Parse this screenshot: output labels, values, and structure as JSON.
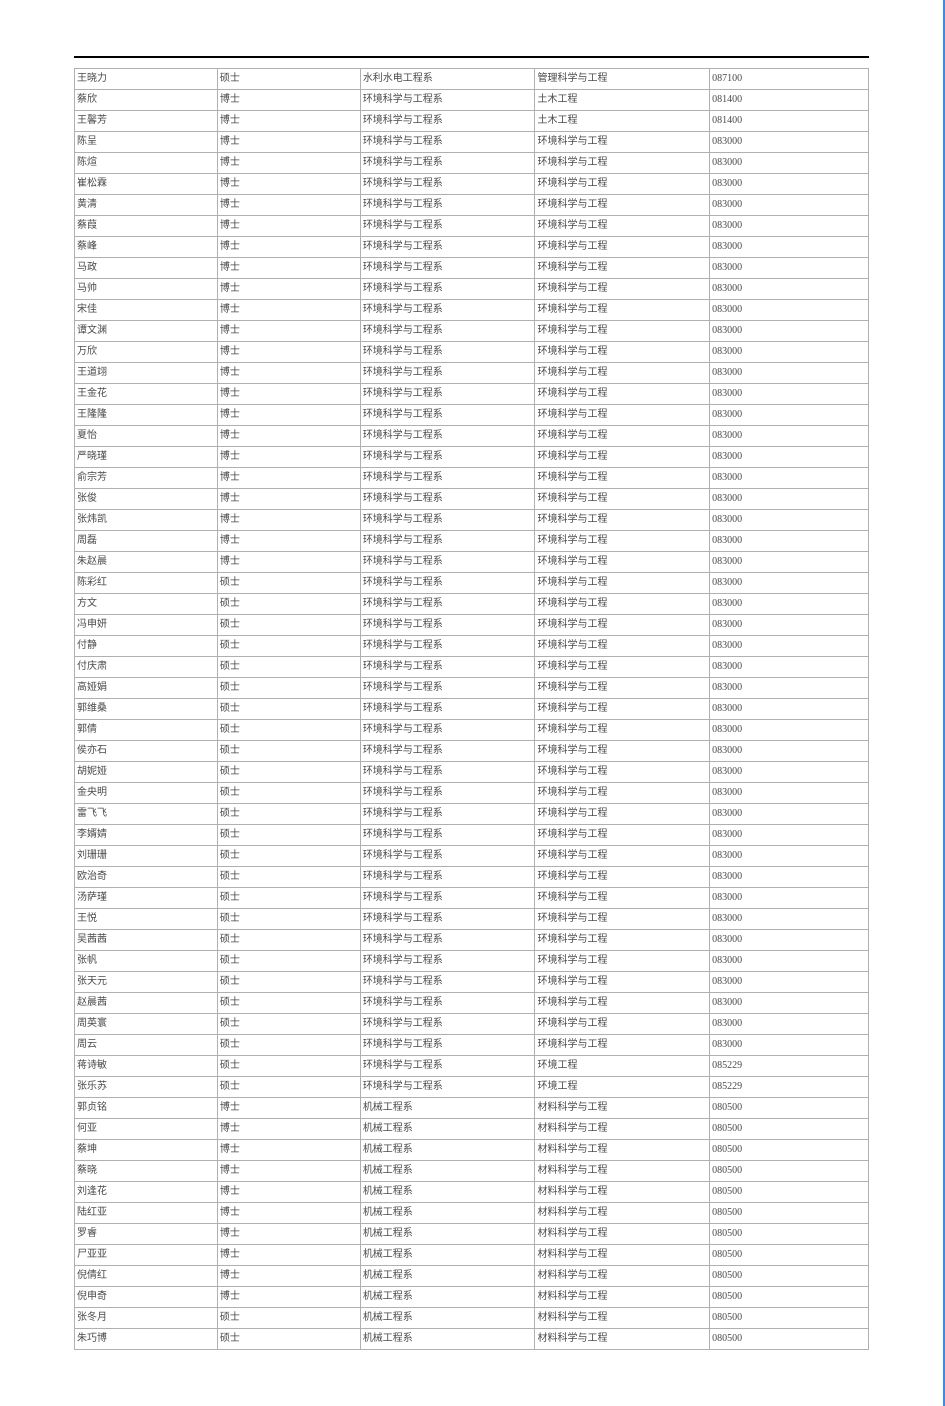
{
  "table": {
    "type": "table",
    "border_color": "#b0b0b0",
    "text_color": "#4a4a4a",
    "font_size": 10,
    "header_line_color": "#000000",
    "right_border_color": "#3b8de0",
    "background_color": "#ffffff",
    "column_widths_pct": [
      18,
      18,
      22,
      22,
      20
    ],
    "rows": [
      [
        "王晓力",
        "硕士",
        "水利水电工程系",
        "管理科学与工程",
        "087100"
      ],
      [
        "蔡欣",
        "博士",
        "环境科学与工程系",
        "土木工程",
        "081400"
      ],
      [
        "王馨芳",
        "博士",
        "环境科学与工程系",
        "土木工程",
        "081400"
      ],
      [
        "陈呈",
        "博士",
        "环境科学与工程系",
        "环境科学与工程",
        "083000"
      ],
      [
        "陈煊",
        "博士",
        "环境科学与工程系",
        "环境科学与工程",
        "083000"
      ],
      [
        "崔松霖",
        "博士",
        "环境科学与工程系",
        "环境科学与工程",
        "083000"
      ],
      [
        "黄清",
        "博士",
        "环境科学与工程系",
        "环境科学与工程",
        "083000"
      ],
      [
        "蔡葭",
        "博士",
        "环境科学与工程系",
        "环境科学与工程",
        "083000"
      ],
      [
        "蔡峰",
        "博士",
        "环境科学与工程系",
        "环境科学与工程",
        "083000"
      ],
      [
        "马政",
        "博士",
        "环境科学与工程系",
        "环境科学与工程",
        "083000"
      ],
      [
        "马帅",
        "博士",
        "环境科学与工程系",
        "环境科学与工程",
        "083000"
      ],
      [
        "宋佳",
        "博士",
        "环境科学与工程系",
        "环境科学与工程",
        "083000"
      ],
      [
        "谭文渊",
        "博士",
        "环境科学与工程系",
        "环境科学与工程",
        "083000"
      ],
      [
        "万欣",
        "博士",
        "环境科学与工程系",
        "环境科学与工程",
        "083000"
      ],
      [
        "王道翊",
        "博士",
        "环境科学与工程系",
        "环境科学与工程",
        "083000"
      ],
      [
        "王金花",
        "博士",
        "环境科学与工程系",
        "环境科学与工程",
        "083000"
      ],
      [
        "王隆隆",
        "博士",
        "环境科学与工程系",
        "环境科学与工程",
        "083000"
      ],
      [
        "夏怡",
        "博士",
        "环境科学与工程系",
        "环境科学与工程",
        "083000"
      ],
      [
        "严晓瑾",
        "博士",
        "环境科学与工程系",
        "环境科学与工程",
        "083000"
      ],
      [
        "俞宗芳",
        "博士",
        "环境科学与工程系",
        "环境科学与工程",
        "083000"
      ],
      [
        "张俊",
        "博士",
        "环境科学与工程系",
        "环境科学与工程",
        "083000"
      ],
      [
        "张炜凯",
        "博士",
        "环境科学与工程系",
        "环境科学与工程",
        "083000"
      ],
      [
        "周磊",
        "博士",
        "环境科学与工程系",
        "环境科学与工程",
        "083000"
      ],
      [
        "朱赵晨",
        "博士",
        "环境科学与工程系",
        "环境科学与工程",
        "083000"
      ],
      [
        "陈彩红",
        "硕士",
        "环境科学与工程系",
        "环境科学与工程",
        "083000"
      ],
      [
        "方文",
        "硕士",
        "环境科学与工程系",
        "环境科学与工程",
        "083000"
      ],
      [
        "冯申妍",
        "硕士",
        "环境科学与工程系",
        "环境科学与工程",
        "083000"
      ],
      [
        "付静",
        "硕士",
        "环境科学与工程系",
        "环境科学与工程",
        "083000"
      ],
      [
        "付庆肃",
        "硕士",
        "环境科学与工程系",
        "环境科学与工程",
        "083000"
      ],
      [
        "高娅娟",
        "硕士",
        "环境科学与工程系",
        "环境科学与工程",
        "083000"
      ],
      [
        "郭维桑",
        "硕士",
        "环境科学与工程系",
        "环境科学与工程",
        "083000"
      ],
      [
        "郭倩",
        "硕士",
        "环境科学与工程系",
        "环境科学与工程",
        "083000"
      ],
      [
        "侯亦石",
        "硕士",
        "环境科学与工程系",
        "环境科学与工程",
        "083000"
      ],
      [
        "胡妮娅",
        "硕士",
        "环境科学与工程系",
        "环境科学与工程",
        "083000"
      ],
      [
        "金央明",
        "硕士",
        "环境科学与工程系",
        "环境科学与工程",
        "083000"
      ],
      [
        "雷飞飞",
        "硕士",
        "环境科学与工程系",
        "环境科学与工程",
        "083000"
      ],
      [
        "李婿婧",
        "硕士",
        "环境科学与工程系",
        "环境科学与工程",
        "083000"
      ],
      [
        "刘珊珊",
        "硕士",
        "环境科学与工程系",
        "环境科学与工程",
        "083000"
      ],
      [
        "欧治奇",
        "硕士",
        "环境科学与工程系",
        "环境科学与工程",
        "083000"
      ],
      [
        "汤萨瑾",
        "硕士",
        "环境科学与工程系",
        "环境科学与工程",
        "083000"
      ],
      [
        "王悦",
        "硕士",
        "环境科学与工程系",
        "环境科学与工程",
        "083000"
      ],
      [
        "吴茜茜",
        "硕士",
        "环境科学与工程系",
        "环境科学与工程",
        "083000"
      ],
      [
        "张帆",
        "硕士",
        "环境科学与工程系",
        "环境科学与工程",
        "083000"
      ],
      [
        "张天元",
        "硕士",
        "环境科学与工程系",
        "环境科学与工程",
        "083000"
      ],
      [
        "赵晨茜",
        "硕士",
        "环境科学与工程系",
        "环境科学与工程",
        "083000"
      ],
      [
        "周英寰",
        "硕士",
        "环境科学与工程系",
        "环境科学与工程",
        "083000"
      ],
      [
        "周云",
        "硕士",
        "环境科学与工程系",
        "环境科学与工程",
        "083000"
      ],
      [
        "蒋诗敏",
        "硕士",
        "环境科学与工程系",
        "环境工程",
        "085229"
      ],
      [
        "张乐苏",
        "硕士",
        "环境科学与工程系",
        "环境工程",
        "085229"
      ],
      [
        "郭贞铭",
        "博士",
        "机械工程系",
        "材料科学与工程",
        "080500"
      ],
      [
        "何亚",
        "博士",
        "机械工程系",
        "材料科学与工程",
        "080500"
      ],
      [
        "蔡坤",
        "博士",
        "机械工程系",
        "材料科学与工程",
        "080500"
      ],
      [
        "蔡晓",
        "博士",
        "机械工程系",
        "材料科学与工程",
        "080500"
      ],
      [
        "刘逢花",
        "博士",
        "机械工程系",
        "材料科学与工程",
        "080500"
      ],
      [
        "陆红亚",
        "博士",
        "机械工程系",
        "材料科学与工程",
        "080500"
      ],
      [
        "罗睿",
        "博士",
        "机械工程系",
        "材料科学与工程",
        "080500"
      ],
      [
        "尸亚亚",
        "博士",
        "机械工程系",
        "材料科学与工程",
        "080500"
      ],
      [
        "倪倩红",
        "博士",
        "机械工程系",
        "材料科学与工程",
        "080500"
      ],
      [
        "倪申奇",
        "博士",
        "机械工程系",
        "材料科学与工程",
        "080500"
      ],
      [
        "张冬月",
        "硕士",
        "机械工程系",
        "材料科学与工程",
        "080500"
      ],
      [
        "朱巧博",
        "硕士",
        "机械工程系",
        "材料科学与工程",
        "080500"
      ]
    ]
  }
}
